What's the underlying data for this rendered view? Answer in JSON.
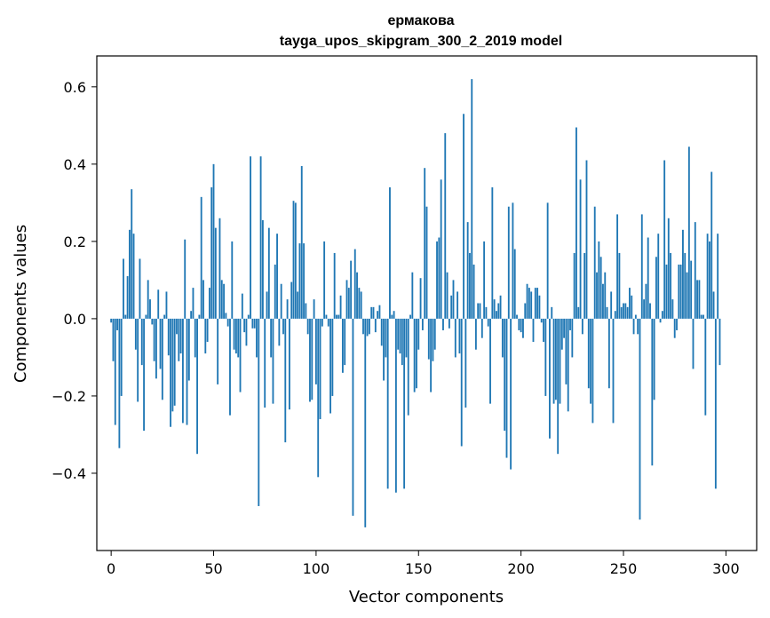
{
  "chart_data": {
    "type": "bar",
    "title_line1": "ермакова",
    "title_line2": "tayga_upos_skipgram_300_2_2019 model",
    "xlabel": "Vector components",
    "ylabel": "Components values",
    "xlim": [
      -7,
      315
    ],
    "ylim": [
      -0.6,
      0.68
    ],
    "x_ticks": [
      0,
      50,
      100,
      150,
      200,
      250,
      300
    ],
    "x_tick_labels": [
      "0",
      "50",
      "100",
      "150",
      "200",
      "250",
      "300"
    ],
    "y_ticks": [
      -0.4,
      -0.2,
      0.0,
      0.2,
      0.4,
      0.6
    ],
    "y_tick_labels": [
      "−0.4",
      "−0.2",
      "0.0",
      "0.2",
      "0.4",
      "0.6"
    ],
    "bar_color": "#1f77b4",
    "values": [
      -0.01,
      -0.11,
      -0.275,
      -0.03,
      -0.335,
      -0.2,
      0.155,
      0.01,
      0.11,
      0.23,
      0.335,
      0.22,
      -0.08,
      -0.215,
      0.155,
      -0.12,
      -0.29,
      0.01,
      0.1,
      0.05,
      -0.015,
      -0.11,
      -0.155,
      0.075,
      -0.13,
      -0.21,
      0.01,
      0.07,
      -0.095,
      -0.28,
      -0.24,
      -0.225,
      -0.04,
      -0.11,
      -0.09,
      -0.27,
      0.205,
      -0.275,
      -0.16,
      0.02,
      0.08,
      -0.1,
      -0.35,
      0.01,
      0.315,
      0.1,
      -0.09,
      -0.06,
      0.08,
      0.34,
      0.4,
      0.235,
      -0.17,
      0.26,
      0.1,
      0.09,
      0.015,
      -0.02,
      -0.25,
      0.2,
      -0.08,
      -0.09,
      -0.1,
      -0.19,
      0.065,
      -0.035,
      -0.07,
      0.01,
      0.42,
      -0.025,
      -0.025,
      -0.1,
      -0.485,
      0.42,
      0.255,
      -0.23,
      0.07,
      0.235,
      -0.1,
      -0.22,
      0.14,
      0.22,
      -0.07,
      0.09,
      -0.04,
      -0.32,
      0.05,
      -0.235,
      0.095,
      0.305,
      0.3,
      0.07,
      0.195,
      0.395,
      0.195,
      0.04,
      -0.04,
      -0.215,
      -0.21,
      0.05,
      -0.17,
      -0.41,
      -0.26,
      -0.02,
      0.2,
      0.01,
      -0.02,
      -0.245,
      -0.2,
      0.17,
      0.01,
      0.01,
      0.06,
      -0.14,
      -0.12,
      0.1,
      0.08,
      0.15,
      -0.51,
      0.18,
      0.12,
      0.08,
      0.07,
      -0.04,
      -0.54,
      -0.045,
      -0.04,
      0.03,
      0.03,
      -0.035,
      0.02,
      0.035,
      -0.07,
      -0.16,
      -0.1,
      -0.44,
      0.34,
      0.01,
      0.02,
      -0.45,
      -0.08,
      -0.09,
      -0.12,
      -0.44,
      -0.1,
      -0.25,
      0.01,
      0.12,
      -0.19,
      -0.18,
      -0.08,
      0.105,
      -0.03,
      0.39,
      0.29,
      -0.105,
      -0.19,
      -0.11,
      -0.08,
      0.2,
      0.21,
      0.36,
      -0.03,
      0.48,
      0.12,
      -0.025,
      0.06,
      0.1,
      -0.1,
      0.07,
      -0.09,
      -0.33,
      0.53,
      -0.23,
      0.25,
      0.17,
      0.62,
      0.14,
      -0.08,
      0.04,
      0.04,
      -0.05,
      0.2,
      0.03,
      -0.02,
      -0.22,
      0.34,
      0.05,
      0.02,
      0.04,
      0.06,
      -0.1,
      -0.29,
      -0.36,
      0.29,
      -0.39,
      0.3,
      0.18,
      0.01,
      -0.03,
      -0.035,
      -0.05,
      0.04,
      0.09,
      0.08,
      0.07,
      -0.06,
      0.08,
      0.08,
      0.06,
      -0.01,
      -0.06,
      -0.2,
      0.3,
      -0.31,
      0.03,
      -0.22,
      -0.21,
      -0.35,
      -0.22,
      -0.08,
      -0.05,
      -0.17,
      -0.24,
      -0.03,
      -0.1,
      0.17,
      0.495,
      0.03,
      0.36,
      -0.04,
      0.17,
      0.41,
      -0.18,
      -0.22,
      -0.27,
      0.29,
      0.12,
      0.2,
      0.16,
      0.09,
      0.12,
      0.03,
      -0.18,
      0.07,
      -0.27,
      0.02,
      0.27,
      0.17,
      0.03,
      0.04,
      0.04,
      0.03,
      0.08,
      0.06,
      -0.04,
      0.01,
      -0.04,
      -0.52,
      0.27,
      0.05,
      0.09,
      0.21,
      0.04,
      -0.38,
      -0.21,
      0.16,
      0.22,
      -0.01,
      0.02,
      0.41,
      0.14,
      0.26,
      0.17,
      0.05,
      -0.05,
      -0.03,
      0.14,
      0.14,
      0.23,
      0.17,
      0.12,
      0.445,
      0.15,
      -0.13,
      0.25,
      0.1,
      0.1,
      0.01,
      0.01,
      -0.25,
      0.22,
      0.2,
      0.38,
      0.07,
      -0.44,
      0.22,
      -0.12
    ]
  }
}
